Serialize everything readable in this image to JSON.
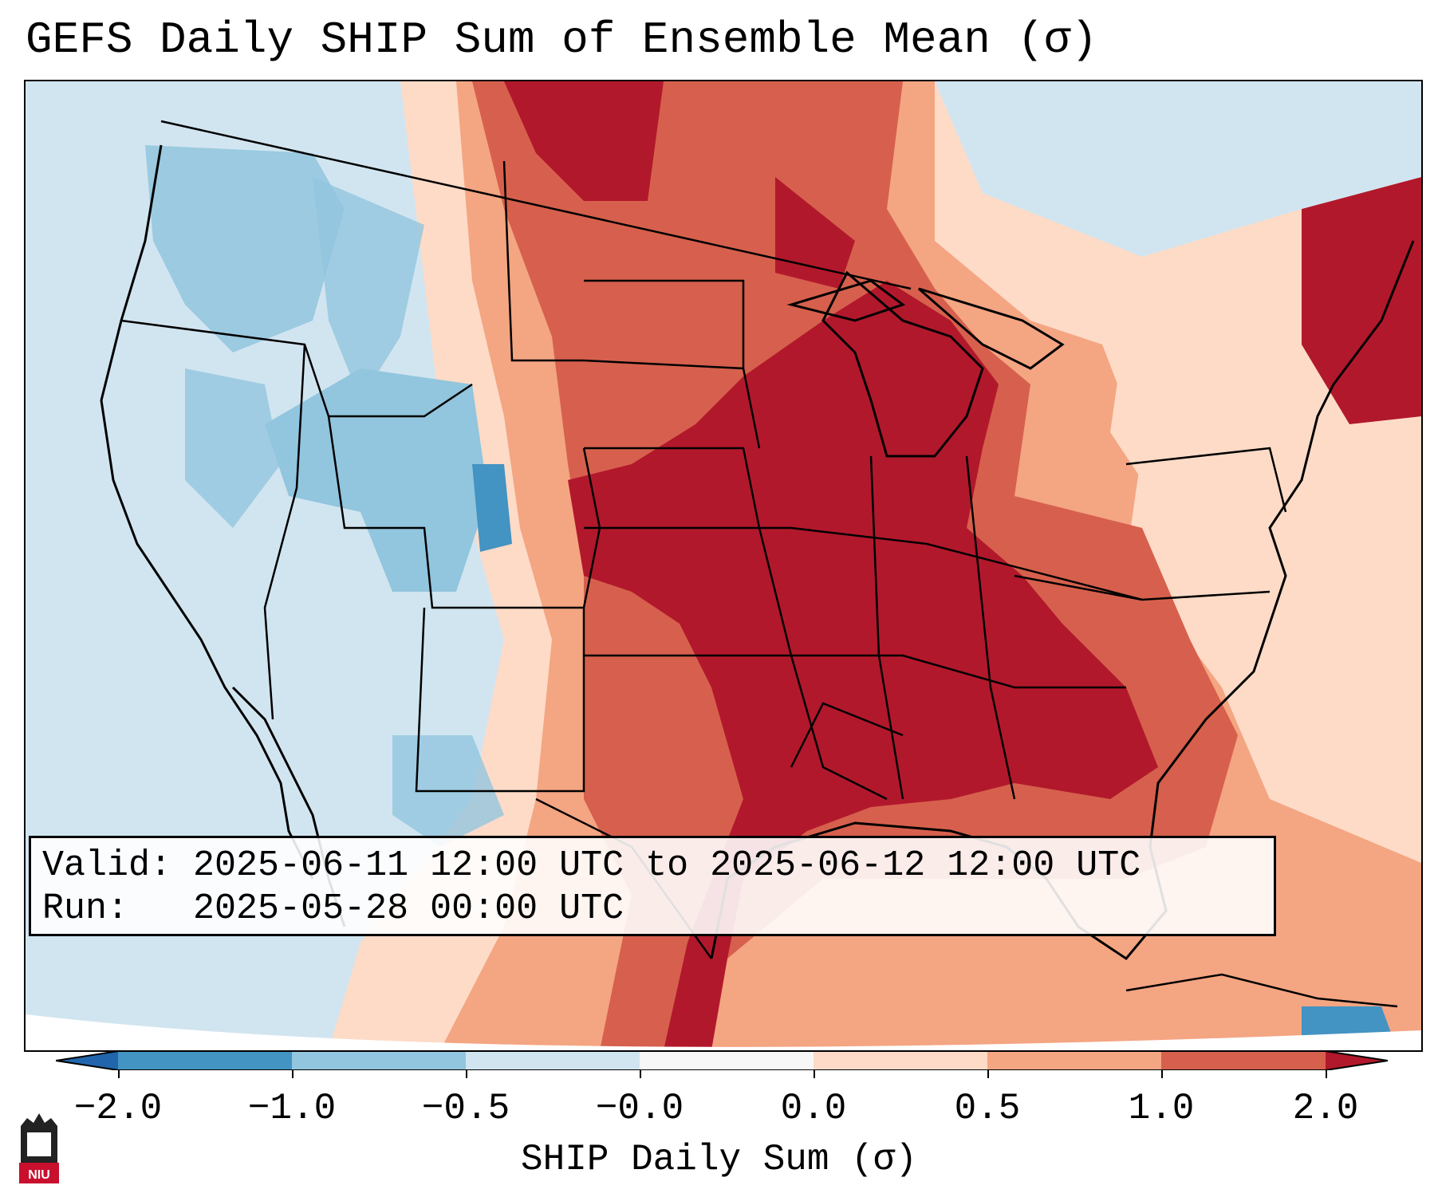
{
  "title": "GEFS Daily SHIP Sum of Ensemble Mean (σ)",
  "info": {
    "valid_label": "Valid:",
    "valid_value": "2025-06-11 12:00 UTC to 2025-06-12 12:00 UTC",
    "run_label": "Run:",
    "run_value": "2025-05-28 00:00 UTC"
  },
  "colorbar": {
    "label": "SHIP Daily Sum (σ)",
    "ticks": [
      "−2.0",
      "−1.0",
      "−0.5",
      "−0.0",
      "0.0",
      "0.5",
      "1.0",
      "2.0"
    ],
    "colors": [
      "#2166ac",
      "#4393c3",
      "#92c5de",
      "#d1e5f0",
      "#f7f7f7",
      "#fddbc7",
      "#f4a582",
      "#d6604d",
      "#b2182b"
    ]
  },
  "map": {
    "region": "Continental United States",
    "projection_edge_color": "#ffffff"
  },
  "logo": {
    "text": "NIU",
    "color": "#c8102e"
  }
}
